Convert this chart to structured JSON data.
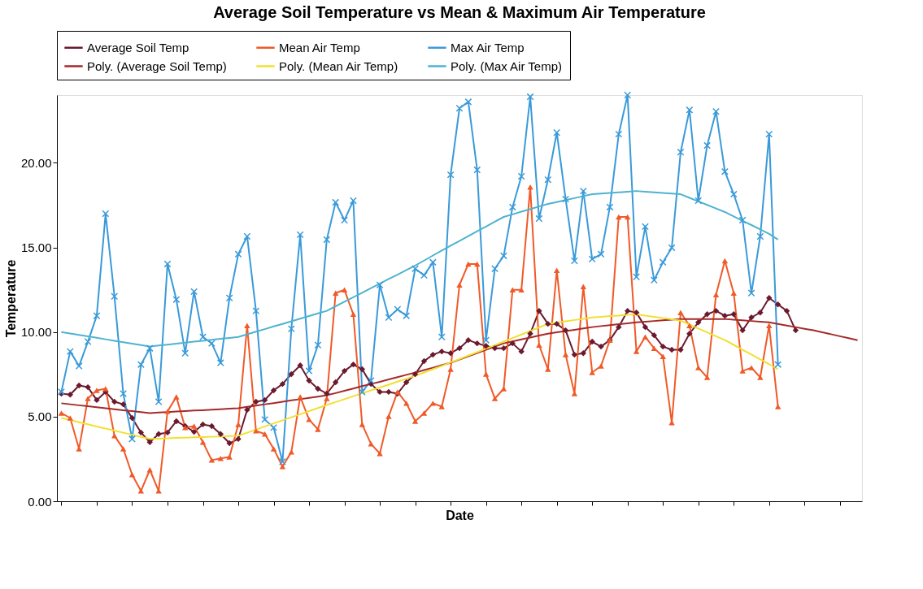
{
  "chart_data": {
    "type": "line",
    "title": "Average Soil Temperature vs Mean & Maximum Air Temperature",
    "xlabel": "Date",
    "ylabel": "Temperature",
    "categories": [
      null,
      null,
      null,
      null,
      null,
      null,
      null,
      null,
      null,
      null,
      null,
      null,
      null,
      null,
      null,
      null,
      null,
      null,
      null,
      null,
      null,
      null,
      null,
      null,
      null,
      null,
      null,
      null,
      null,
      null,
      null,
      null,
      null,
      null,
      null,
      null,
      null,
      null,
      null,
      null,
      null,
      null,
      null,
      null,
      null,
      null,
      null,
      null,
      null,
      null,
      null,
      null,
      null,
      null,
      null,
      null,
      null,
      null,
      null,
      null,
      null,
      null,
      null,
      null,
      null,
      null,
      null,
      null,
      null,
      null,
      null,
      null,
      null,
      null,
      null,
      null,
      null,
      null,
      null,
      null,
      null,
      null,
      null,
      null,
      null,
      null,
      null,
      null,
      null,
      null,
      null
    ],
    "ylim": [
      0,
      24
    ],
    "yticks": [
      {
        "value": 0,
        "label": "0.00"
      },
      {
        "value": 5,
        "label": "5.00"
      },
      {
        "value": 10,
        "label": "10.00"
      },
      {
        "value": 15,
        "label": "15.00"
      },
      {
        "value": 20,
        "label": "20.00"
      }
    ],
    "grid": false,
    "legend": "top",
    "tick_labels": "y",
    "series": [
      {
        "name": "Average Soil Temp",
        "color": "#6b1a2e",
        "marker": "diamond",
        "values": [
          6.36,
          6.3,
          6.84,
          6.74,
          5.98,
          6.46,
          5.88,
          5.73,
          4.92,
          4.06,
          3.49,
          3.97,
          4.06,
          4.73,
          4.44,
          4.1,
          4.54,
          4.44,
          3.97,
          3.43,
          3.68,
          5.4,
          5.88,
          5.98,
          6.55,
          6.93,
          7.51,
          8.03,
          7.13,
          6.65,
          6.36,
          7.03,
          7.7,
          8.08,
          7.8,
          6.93,
          6.46,
          6.46,
          6.36,
          7.03,
          7.51,
          8.28,
          8.66,
          8.85,
          8.75,
          9.04,
          9.52,
          9.33,
          9.18,
          9.04,
          9.04,
          9.33,
          8.85,
          9.9,
          11.25,
          10.48,
          10.48,
          10.1,
          8.66,
          8.75,
          9.43,
          9.14,
          9.52,
          10.29,
          11.25,
          11.15,
          10.29,
          9.81,
          9.14,
          8.95,
          8.95,
          9.9,
          10.57,
          11.05,
          11.25,
          10.96,
          11.05,
          10.1,
          10.86,
          11.15,
          12.01,
          11.63,
          11.25,
          10.1,
          null,
          null,
          null,
          null,
          null,
          null,
          null
        ]
      },
      {
        "name": "Mean Air Temp",
        "color": "#f05a28",
        "marker": "triangle",
        "values": [
          5.21,
          4.92,
          3.1,
          6.07,
          6.55,
          6.65,
          3.87,
          3.1,
          1.57,
          0.61,
          1.86,
          0.61,
          5.31,
          6.17,
          4.35,
          4.44,
          3.49,
          2.43,
          2.53,
          2.62,
          4.54,
          10.38,
          4.16,
          3.97,
          3.1,
          2.05,
          2.91,
          6.17,
          4.83,
          4.25,
          6.07,
          12.3,
          12.49,
          11.05,
          4.54,
          3.39,
          2.82,
          5.02,
          6.46,
          5.79,
          4.73,
          5.21,
          5.79,
          5.59,
          7.8,
          12.78,
          14.02,
          14.02,
          7.51,
          6.07,
          6.65,
          12.49,
          12.49,
          18.56,
          9.23,
          7.8,
          13.64,
          8.66,
          6.36,
          12.68,
          7.61,
          7.99,
          9.52,
          16.8,
          16.8,
          8.85,
          9.71,
          9.04,
          8.56,
          4.64,
          11.15,
          10.38,
          7.89,
          7.32,
          12.2,
          14.21,
          12.3,
          7.7,
          7.89,
          7.32,
          10.38,
          5.59,
          null,
          null,
          null,
          null,
          null,
          null,
          null,
          null,
          null
        ]
      },
      {
        "name": "Max Air Temp",
        "color": "#3a9ad9",
        "marker": "cross",
        "values": [
          6.46,
          8.85,
          7.99,
          9.43,
          10.96,
          16.99,
          12.11,
          6.36,
          3.68,
          8.08,
          9.04,
          5.88,
          14.02,
          11.92,
          8.75,
          12.39,
          9.71,
          9.33,
          8.18,
          12.01,
          14.6,
          15.65,
          11.25,
          4.83,
          4.35,
          2.34,
          10.19,
          15.75,
          7.7,
          9.23,
          15.46,
          17.66,
          16.61,
          17.76,
          6.46,
          7.13,
          12.78,
          10.86,
          11.34,
          10.96,
          13.74,
          13.35,
          14.12,
          9.71,
          19.29,
          23.22,
          23.6,
          19.58,
          9.52,
          13.74,
          14.5,
          17.38,
          19.2,
          23.9,
          16.7,
          19.0,
          21.78,
          17.85,
          14.21,
          18.33,
          14.31,
          14.6,
          17.38,
          21.69,
          24.0,
          13.26,
          16.23,
          13.07,
          14.12,
          14.98,
          20.63,
          23.12,
          17.76,
          21.02,
          23.03,
          19.48,
          18.14,
          16.61,
          12.3,
          15.65,
          21.69,
          8.08,
          null,
          null,
          null,
          null,
          null,
          null,
          null,
          null,
          null
        ]
      },
      {
        "name": "Poly. (Average Soil Temp)",
        "color": "#a52a2a",
        "marker": "none",
        "values": [
          5.79,
          5.73,
          5.67,
          5.62,
          5.56,
          5.5,
          5.44,
          5.38,
          5.33,
          5.27,
          5.21,
          5.24,
          5.27,
          5.3,
          5.33,
          5.36,
          5.38,
          5.41,
          5.44,
          5.47,
          5.5,
          5.58,
          5.65,
          5.73,
          5.8,
          5.88,
          5.96,
          6.03,
          6.11,
          6.18,
          6.26,
          6.39,
          6.53,
          6.66,
          6.8,
          6.93,
          7.06,
          7.2,
          7.33,
          7.47,
          7.6,
          7.75,
          7.89,
          8.04,
          8.18,
          8.37,
          8.56,
          8.76,
          8.95,
          9.14,
          9.33,
          9.44,
          9.56,
          9.67,
          9.79,
          9.9,
          9.98,
          10.06,
          10.13,
          10.21,
          10.29,
          10.35,
          10.4,
          10.46,
          10.51,
          10.57,
          10.61,
          10.65,
          10.69,
          10.73,
          10.77,
          10.77,
          10.77,
          10.77,
          10.77,
          10.77,
          10.73,
          10.69,
          10.65,
          10.61,
          10.57,
          10.48,
          10.38,
          10.29,
          10.19,
          10.1,
          9.98,
          9.87,
          9.75,
          9.64,
          9.52
        ]
      },
      {
        "name": "Poly. (Mean Air Temp)",
        "color": "#f2e030",
        "marker": "none",
        "values": [
          4.92,
          4.8,
          4.67,
          4.55,
          4.42,
          4.3,
          4.18,
          4.05,
          3.93,
          3.8,
          3.68,
          3.7,
          3.72,
          3.74,
          3.76,
          3.78,
          3.79,
          3.81,
          3.83,
          3.85,
          3.87,
          4.05,
          4.23,
          4.42,
          4.6,
          4.78,
          4.96,
          5.14,
          5.33,
          5.51,
          5.69,
          5.86,
          6.03,
          6.21,
          6.38,
          6.55,
          6.72,
          6.89,
          7.07,
          7.24,
          7.41,
          7.61,
          7.8,
          8.0,
          8.2,
          8.4,
          8.61,
          8.81,
          9.02,
          9.22,
          9.43,
          9.64,
          9.85,
          10.06,
          10.27,
          10.48,
          10.56,
          10.63,
          10.71,
          10.78,
          10.86,
          10.9,
          10.94,
          10.97,
          11.01,
          11.05,
          10.97,
          10.9,
          10.82,
          10.75,
          10.67,
          10.44,
          10.21,
          9.98,
          9.75,
          9.52,
          9.24,
          8.95,
          8.67,
          8.38,
          8.1,
          7.8,
          null,
          null,
          null,
          null,
          null,
          null,
          null,
          null,
          null
        ]
      },
      {
        "name": "Poly. (Max Air Temp)",
        "color": "#4fb3cf",
        "marker": "none",
        "values": [
          10.0,
          9.91,
          9.83,
          9.74,
          9.66,
          9.57,
          9.48,
          9.4,
          9.31,
          9.23,
          9.14,
          9.2,
          9.25,
          9.31,
          9.37,
          9.43,
          9.48,
          9.54,
          9.6,
          9.65,
          9.71,
          9.86,
          10.02,
          10.17,
          10.33,
          10.48,
          10.63,
          10.79,
          10.94,
          11.1,
          11.25,
          11.52,
          11.79,
          12.05,
          12.32,
          12.59,
          12.86,
          13.13,
          13.39,
          13.66,
          13.93,
          14.22,
          14.52,
          14.81,
          15.1,
          15.38,
          15.67,
          15.95,
          16.23,
          16.52,
          16.8,
          16.95,
          17.11,
          17.26,
          17.42,
          17.57,
          17.68,
          17.8,
          17.91,
          18.03,
          18.14,
          18.18,
          18.22,
          18.25,
          18.29,
          18.33,
          18.29,
          18.25,
          18.22,
          18.18,
          18.14,
          17.93,
          17.72,
          17.51,
          17.3,
          17.09,
          16.83,
          16.57,
          16.32,
          16.06,
          15.8,
          15.46,
          null,
          null,
          null,
          null,
          null,
          null,
          null,
          null,
          null
        ]
      }
    ]
  }
}
